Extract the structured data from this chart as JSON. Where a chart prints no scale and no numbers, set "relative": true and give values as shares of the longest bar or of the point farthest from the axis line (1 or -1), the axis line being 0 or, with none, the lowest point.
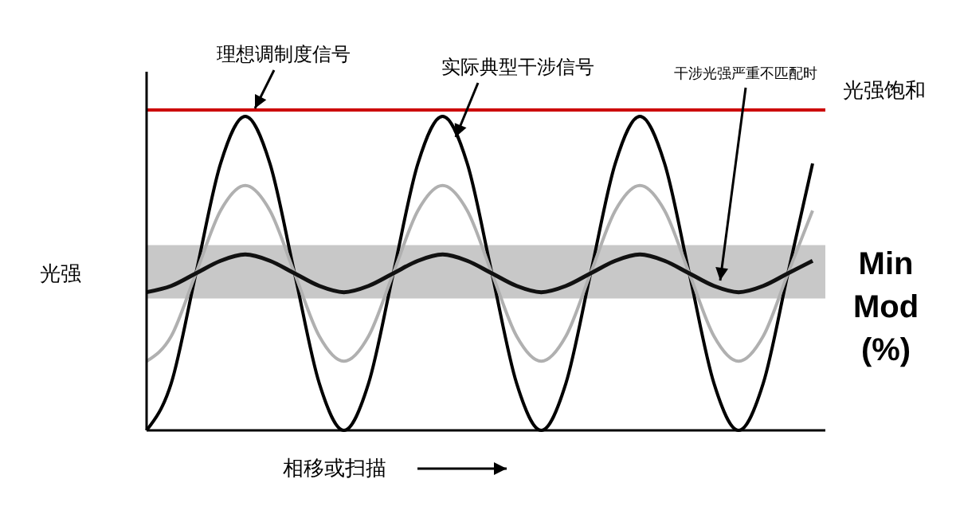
{
  "chart_data": {
    "type": "line",
    "relative": true,
    "xlabel": "相移或扫描",
    "ylabel": "光强",
    "categories": [
      null,
      null,
      null,
      null,
      null,
      null,
      null,
      null,
      null,
      null,
      null,
      null,
      null,
      null,
      null,
      null,
      null,
      null,
      null,
      null,
      null,
      null,
      null,
      null,
      null,
      null,
      null,
      null
    ],
    "series": [
      {
        "color": "#000000",
        "values": [
          0,
          0.15,
          0.5,
          0.85,
          1,
          0.85,
          0.5,
          0.15,
          0,
          0.15,
          0.5,
          0.85,
          1,
          0.85,
          0.5,
          0.15,
          0,
          0.15,
          0.5,
          0.85,
          1,
          0.85,
          0.5,
          0.15,
          0,
          0.15,
          0.5,
          0.85
        ]
      },
      {
        "color": "#b0b0b0",
        "values": [
          0.22,
          0.3,
          0.5,
          0.7,
          0.78,
          0.7,
          0.5,
          0.3,
          0.22,
          0.3,
          0.5,
          0.7,
          0.78,
          0.7,
          0.5,
          0.3,
          0.22,
          0.3,
          0.5,
          0.7,
          0.78,
          0.7,
          0.5,
          0.3,
          0.22,
          0.3,
          0.5,
          0.7
        ]
      },
      {
        "color": "#111111",
        "values": [
          0.44,
          0.46,
          0.5,
          0.54,
          0.56,
          0.54,
          0.5,
          0.46,
          0.44,
          0.46,
          0.5,
          0.54,
          0.56,
          0.54,
          0.5,
          0.46,
          0.44,
          0.46,
          0.5,
          0.54,
          0.56,
          0.54,
          0.5,
          0.46,
          0.44,
          0.46,
          0.5,
          0.54
        ]
      }
    ],
    "ref_lines": [
      {
        "axis": "y",
        "value": 1.02,
        "label": "光强饱和",
        "color": "#cc0000"
      }
    ],
    "bands": [
      {
        "axis": "y",
        "from": 0.42,
        "to": 0.59,
        "label": "Min Mod (%)",
        "color": "#c8c8c8"
      }
    ],
    "annotations": [
      "理想调制度信号",
      "实际典型干涉信号",
      "干涉光强严重不匹配时"
    ]
  }
}
